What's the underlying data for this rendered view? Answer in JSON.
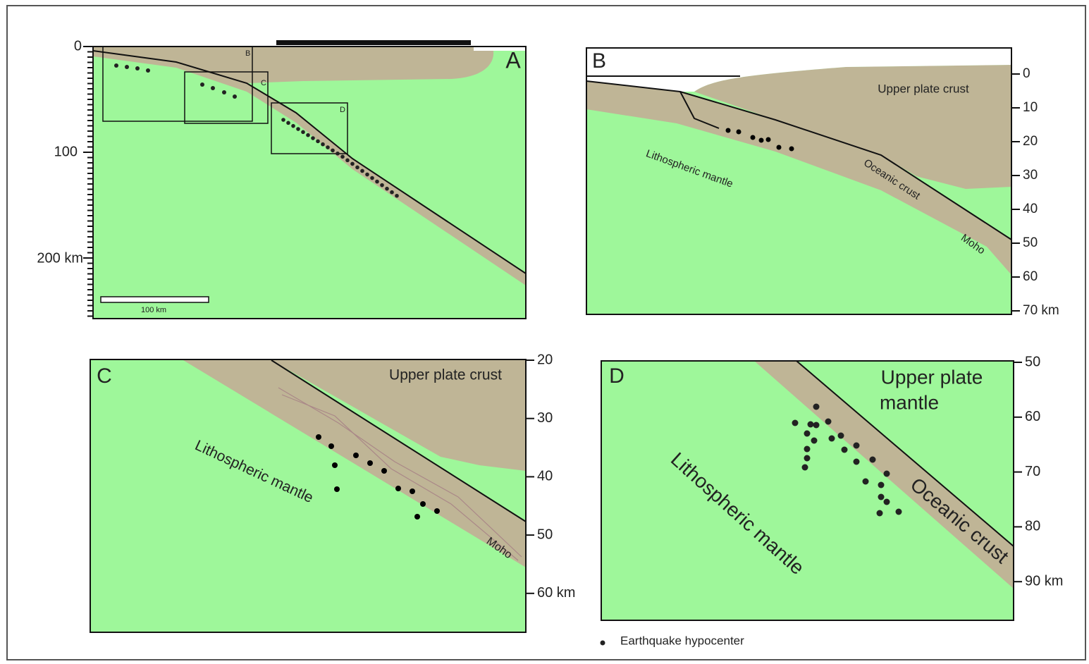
{
  "panels": [
    {
      "label": "A",
      "ticks": [
        "0",
        "100",
        "200 km"
      ],
      "inset_labels": [
        "B",
        "C",
        "D"
      ],
      "scale_bar": "100 km"
    },
    {
      "label": "B",
      "ticks": [
        "0",
        "10",
        "20",
        "30",
        "40",
        "50",
        "60",
        "70 km"
      ],
      "annotations": [
        "Upper plate crust",
        "Lithospheric mantle",
        "Oceanic crust",
        "Moho"
      ]
    },
    {
      "label": "C",
      "ticks": [
        "20",
        "30",
        "40",
        "50",
        "60 km"
      ],
      "annotations": [
        "Upper plate crust",
        "Lithospheric mantle",
        "Moho"
      ]
    },
    {
      "label": "D",
      "ticks": [
        "50",
        "60",
        "70",
        "80",
        "90 km"
      ],
      "annotations": [
        "Upper plate",
        "mantle",
        "Lithospheric mantle",
        "Oceanic crust"
      ]
    }
  ],
  "legend": {
    "label": "Earthquake hypocenter"
  }
}
